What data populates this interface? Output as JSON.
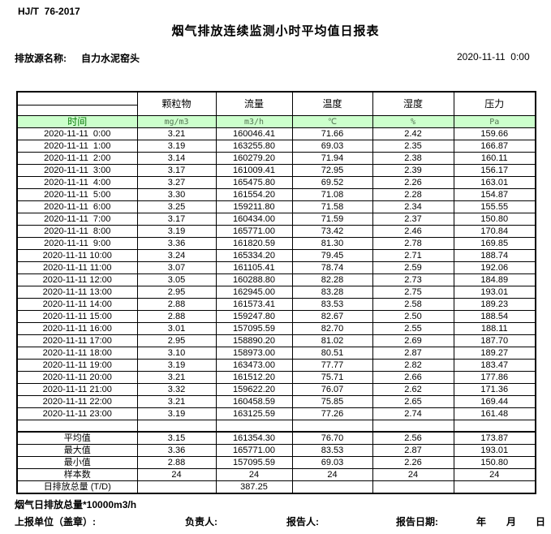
{
  "header": {
    "standard": "HJ/T  76-2017",
    "title": "烟气排放连续监测小时平均值日报表",
    "source_label": "排放源名称:",
    "source_name": "自力水泥窑头",
    "datetime": "2020-11-11  0:00"
  },
  "colors": {
    "unit_row_bg": "#ccffcc",
    "time_label_text": "#0a7a0a",
    "unit_text": "#557755",
    "border": "#000000"
  },
  "table": {
    "time_label": "时间",
    "columns": [
      "颗粒物",
      "流量",
      "温度",
      "湿度",
      "压力"
    ],
    "units": [
      "mg/m3",
      "m3/h",
      "℃",
      "%",
      "Pa"
    ],
    "rows": [
      {
        "time": "2020-11-11  0:00",
        "values": [
          "3.21",
          "160046.41",
          "71.66",
          "2.42",
          "159.66"
        ]
      },
      {
        "time": "2020-11-11  1:00",
        "values": [
          "3.19",
          "163255.80",
          "69.03",
          "2.35",
          "166.87"
        ]
      },
      {
        "time": "2020-11-11  2:00",
        "values": [
          "3.14",
          "160279.20",
          "71.94",
          "2.38",
          "160.11"
        ]
      },
      {
        "time": "2020-11-11  3:00",
        "values": [
          "3.17",
          "161009.41",
          "72.95",
          "2.39",
          "156.17"
        ]
      },
      {
        "time": "2020-11-11  4:00",
        "values": [
          "3.27",
          "165475.80",
          "69.52",
          "2.26",
          "163.01"
        ]
      },
      {
        "time": "2020-11-11  5:00",
        "values": [
          "3.30",
          "161554.20",
          "71.08",
          "2.28",
          "154.87"
        ]
      },
      {
        "time": "2020-11-11  6:00",
        "values": [
          "3.25",
          "159211.80",
          "71.58",
          "2.34",
          "155.55"
        ]
      },
      {
        "time": "2020-11-11  7:00",
        "values": [
          "3.17",
          "160434.00",
          "71.59",
          "2.37",
          "150.80"
        ]
      },
      {
        "time": "2020-11-11  8:00",
        "values": [
          "3.19",
          "165771.00",
          "73.42",
          "2.46",
          "170.84"
        ]
      },
      {
        "time": "2020-11-11  9:00",
        "values": [
          "3.36",
          "161820.59",
          "81.30",
          "2.78",
          "169.85"
        ]
      },
      {
        "time": "2020-11-11 10:00",
        "values": [
          "3.24",
          "165334.20",
          "79.45",
          "2.71",
          "188.74"
        ]
      },
      {
        "time": "2020-11-11 11:00",
        "values": [
          "3.07",
          "161105.41",
          "78.74",
          "2.59",
          "192.06"
        ]
      },
      {
        "time": "2020-11-11 12:00",
        "values": [
          "3.05",
          "160288.80",
          "82.28",
          "2.73",
          "184.89"
        ]
      },
      {
        "time": "2020-11-11 13:00",
        "values": [
          "2.95",
          "162945.00",
          "83.28",
          "2.75",
          "193.01"
        ]
      },
      {
        "time": "2020-11-11 14:00",
        "values": [
          "2.88",
          "161573.41",
          "83.53",
          "2.58",
          "189.23"
        ]
      },
      {
        "time": "2020-11-11 15:00",
        "values": [
          "2.88",
          "159247.80",
          "82.67",
          "2.50",
          "188.54"
        ]
      },
      {
        "time": "2020-11-11 16:00",
        "values": [
          "3.01",
          "157095.59",
          "82.70",
          "2.55",
          "188.11"
        ]
      },
      {
        "time": "2020-11-11 17:00",
        "values": [
          "2.95",
          "158890.20",
          "81.02",
          "2.69",
          "187.70"
        ]
      },
      {
        "time": "2020-11-11 18:00",
        "values": [
          "3.10",
          "158973.00",
          "80.51",
          "2.87",
          "189.27"
        ]
      },
      {
        "time": "2020-11-11 19:00",
        "values": [
          "3.19",
          "163473.00",
          "77.77",
          "2.82",
          "183.47"
        ]
      },
      {
        "time": "2020-11-11 20:00",
        "values": [
          "3.21",
          "161512.20",
          "75.71",
          "2.66",
          "177.86"
        ]
      },
      {
        "time": "2020-11-11 21:00",
        "values": [
          "3.32",
          "159622.20",
          "76.07",
          "2.62",
          "171.36"
        ]
      },
      {
        "time": "2020-11-11 22:00",
        "values": [
          "3.21",
          "160458.59",
          "75.85",
          "2.65",
          "169.44"
        ]
      },
      {
        "time": "2020-11-11 23:00",
        "values": [
          "3.19",
          "163125.59",
          "77.26",
          "2.74",
          "161.48"
        ]
      }
    ],
    "summary": [
      {
        "label": "平均值",
        "values": [
          "3.15",
          "161354.30",
          "76.70",
          "2.56",
          "173.87"
        ]
      },
      {
        "label": "最大值",
        "values": [
          "3.36",
          "165771.00",
          "83.53",
          "2.87",
          "193.01"
        ]
      },
      {
        "label": "最小值",
        "values": [
          "2.88",
          "157095.59",
          "69.03",
          "2.26",
          "150.80"
        ]
      },
      {
        "label": "样本数",
        "values": [
          "24",
          "24",
          "24",
          "24",
          "24"
        ]
      },
      {
        "label": "日排放总量 (T/D)",
        "values": [
          "",
          "387.25",
          "",
          "",
          ""
        ]
      }
    ]
  },
  "footer": {
    "note": "烟气日排放总量*10000m3/h",
    "report_unit_label": "上报单位（盖章）:",
    "responsible_label": "负责人:",
    "reporter_label": "报告人:",
    "report_date_label": "报告日期:",
    "year_label": "年",
    "month_label": "月",
    "day_label": "日"
  }
}
